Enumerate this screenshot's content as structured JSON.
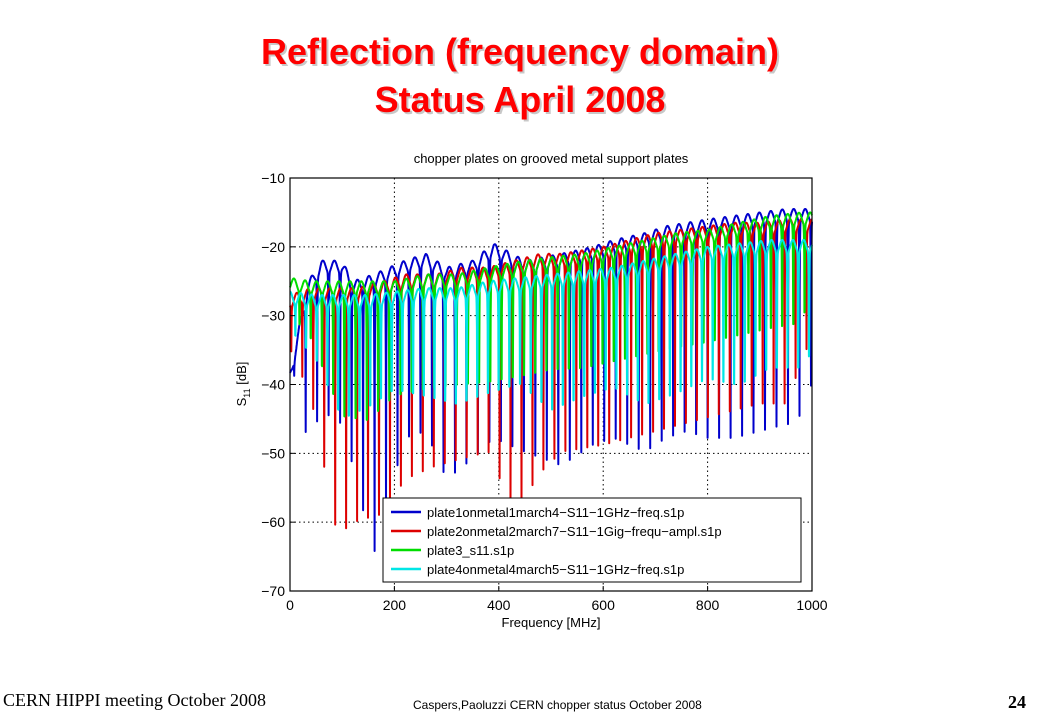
{
  "slide": {
    "title_line1": "Reflection (frequency domain)",
    "title_line2": "Status April 2008",
    "footer_left": "CERN HIPPI meeting October 2008",
    "footer_center": "Caspers,Paoluzzi CERN chopper status October 2008",
    "page_number": "24"
  },
  "chart_data": {
    "type": "line",
    "title": "chopper plates on grooved metal support plates",
    "xlabel": "Frequency [MHz]",
    "ylabel": "S11 [dB]",
    "ylabel_main": "S",
    "ylabel_sub": "11",
    "ylabel_unit": " [dB]",
    "xlim": [
      0,
      1000
    ],
    "ylim": [
      -70,
      -10
    ],
    "xticks": [
      0,
      200,
      400,
      600,
      800,
      1000
    ],
    "yticks": [
      -70,
      -60,
      -50,
      -40,
      -30,
      -20,
      -10
    ],
    "xtick_labels": [
      "0",
      "200",
      "400",
      "600",
      "800",
      "1000"
    ],
    "ytick_labels": [
      "−70",
      "−60",
      "−50",
      "−40",
      "−30",
      "−20",
      "−10"
    ],
    "grid": true,
    "legend_position": "bottom-right",
    "series": [
      {
        "name": "plate1onmetal1march4−S11−1GHz−freq.s1p",
        "color": "#0000cc",
        "period": 22,
        "phase": 3,
        "x": [
          0,
          35,
          60,
          100,
          120,
          160,
          220,
          260,
          300,
          350,
          390,
          450,
          520,
          580,
          620,
          680,
          720,
          760,
          800,
          850,
          900,
          950,
          970,
          1000
        ],
        "peaks": [
          -38,
          -25,
          -22,
          -22,
          -25,
          -24,
          -22,
          -21,
          -23,
          -22,
          -19.5,
          -22,
          -21,
          -20,
          -19,
          -18,
          -17,
          -16.5,
          -16,
          -15.5,
          -15,
          -14.5,
          -14.5,
          -14.5
        ],
        "nulls": [
          -34,
          -47,
          -42,
          -44,
          -50,
          -63,
          -46,
          -45,
          -52,
          -49,
          -46,
          -48,
          -50,
          -47,
          -46,
          -48,
          -46,
          -45,
          -46,
          -46,
          -45,
          -44,
          -44,
          -38
        ]
      },
      {
        "name": "plate2onmetal2march7−S11−1Gig−frequ−ampl.s1p",
        "color": "#dd0000",
        "period": 21,
        "phase": 8,
        "x": [
          0,
          40,
          90,
          130,
          180,
          220,
          280,
          330,
          380,
          430,
          480,
          520,
          600,
          650,
          700,
          750,
          800,
          850,
          900,
          950,
          1000
        ],
        "peaks": [
          -27,
          -26,
          -26,
          -26,
          -25,
          -24,
          -24,
          -23,
          -23,
          -22,
          -21,
          -21,
          -20,
          -19,
          -18,
          -17.5,
          -17,
          -16.5,
          -16.5,
          -16,
          -16
        ],
        "nulls": [
          -33,
          -40,
          -60,
          -58,
          -57,
          -52,
          -50,
          -49,
          -48,
          -57,
          -51,
          -48,
          -47,
          -46,
          -45,
          -44,
          -43,
          -42,
          -41,
          -41,
          -31
        ]
      },
      {
        "name": "plate3_s11.s1p",
        "color": "#00dd00",
        "period": 21.5,
        "phase": 14,
        "x": [
          0,
          40,
          100,
          150,
          200,
          260,
          320,
          380,
          450,
          500,
          560,
          620,
          680,
          740,
          800,
          860,
          920,
          980,
          1000
        ],
        "peaks": [
          -24.5,
          -25,
          -25,
          -25,
          -25,
          -24,
          -24,
          -23,
          -22,
          -21.5,
          -21,
          -20,
          -19,
          -18,
          -17.5,
          -16.5,
          -15.5,
          -15,
          -15
        ],
        "nulls": [
          -30,
          -36,
          -55,
          -56,
          -50,
          -49,
          -48,
          -48,
          -47,
          -46,
          -46,
          -45,
          -44,
          -43,
          -42,
          -41,
          -40,
          -39,
          -30
        ]
      },
      {
        "name": "plate4onmetal4march5−S11−1GHz−freq.s1p",
        "color": "#00e6e6",
        "period": 20.5,
        "phase": 0,
        "x": [
          0,
          50,
          100,
          150,
          200,
          260,
          320,
          380,
          440,
          500,
          560,
          620,
          680,
          740,
          800,
          860,
          920,
          980,
          1000
        ],
        "peaks": [
          -26.5,
          -27,
          -27,
          -27,
          -26.5,
          -26,
          -26,
          -25,
          -24.5,
          -24,
          -23.5,
          -23,
          -22,
          -21,
          -20,
          -19.5,
          -19,
          -19,
          -19
        ],
        "nulls": [
          -33,
          -40,
          -55,
          -52,
          -48,
          -50,
          -52,
          -50,
          -48,
          -55,
          -52,
          -50,
          -55,
          -53,
          -50,
          -52,
          -48,
          -48,
          -44
        ]
      }
    ]
  }
}
